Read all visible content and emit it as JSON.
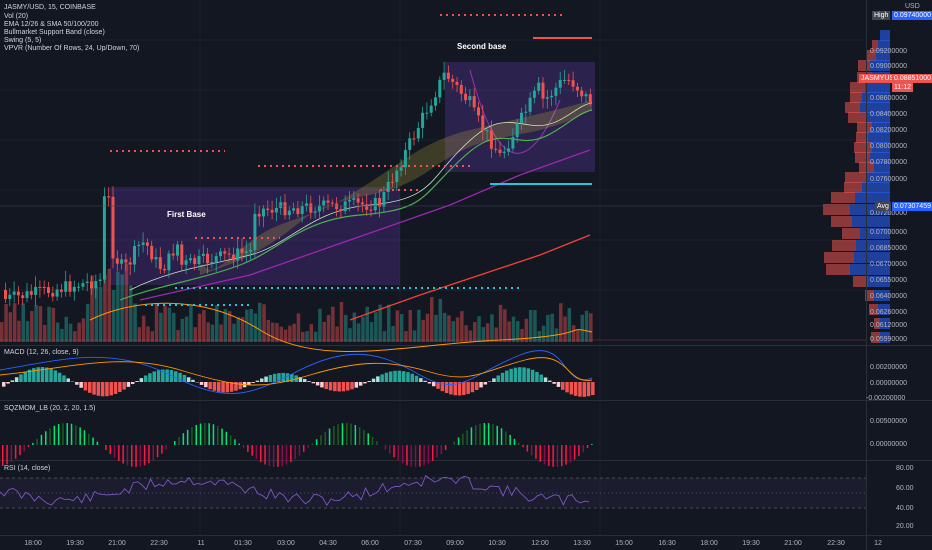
{
  "header": {
    "symbol_line": "JASMY/USD, 15, COINBASE",
    "indicators": [
      "Vol (20)",
      "EMA 12/26 & SMA 50/100/200",
      "Bullmarket Support Band (close)",
      "Swing (5, 5)",
      "VPVR (Number Of Rows, 24, Up/Down, 70)"
    ]
  },
  "top_right": {
    "currency": "USD",
    "currency_sub": "—"
  },
  "price_axis": {
    "labels": [
      "0.09200000",
      "0.09000000",
      "0.08600000",
      "0.08400000",
      "0.08200000",
      "0.08000000",
      "0.07800000",
      "0.07600000",
      "0.07200000",
      "0.07000000",
      "0.06850000",
      "0.06700000",
      "0.06550000",
      "0.06400000",
      "0.06260000",
      "0.06120000",
      "0.05990000"
    ],
    "high_tag": {
      "label": "High",
      "value": "0.09740000"
    },
    "current_tag": {
      "symbol": "JASMYUSD",
      "value": "0.08851000",
      "countdown": "11:12"
    },
    "avg_tag": {
      "label": "Avg",
      "value": "0.07307459"
    }
  },
  "annotations": {
    "first_base": "First Base",
    "second_base": "Second base"
  },
  "macd": {
    "title": "MACD (12, 26, close, 9)",
    "axis_labels": [
      "0.00200000",
      "0.00000000",
      "-0.00200000"
    ]
  },
  "sqzmom": {
    "title": "SQZMOM_LB (20, 2, 20, 1.5)",
    "axis_labels": [
      "0.00500000",
      "0.00000000"
    ]
  },
  "rsi": {
    "title": "RSI (14, close)",
    "axis_labels": [
      "80.00",
      "60.00",
      "40.00",
      "20.00"
    ]
  },
  "time_axis": [
    "18:00",
    "19:30",
    "21:00",
    "22:30",
    "11",
    "01:30",
    "03:00",
    "04:30",
    "06:00",
    "07:30",
    "09:00",
    "10:30",
    "12:00",
    "13:30",
    "15:00",
    "16:30",
    "18:00",
    "19:30",
    "21:00",
    "22:30",
    "12"
  ],
  "colors": {
    "background": "#131722",
    "up": "#26a69a",
    "down": "#ef5350",
    "accent_blue": "#2962ff"
  }
}
